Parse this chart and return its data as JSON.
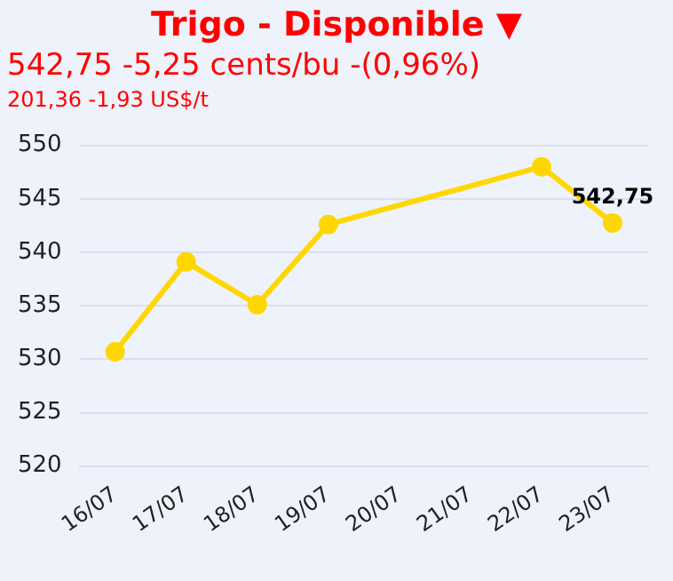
{
  "chart_data": {
    "type": "line",
    "title": "Trigo - Disponible ▼",
    "subtitle": "542,75 -5,25 cents/bu -(0,96%)",
    "annotations": [
      "201,36 -1,93 US$/t"
    ],
    "categories": [
      "16/07",
      "17/07",
      "18/07",
      "19/07",
      "20/07",
      "21/07",
      "22/07",
      "23/07"
    ],
    "series": [
      {
        "color": "#ffd700",
        "values": [
          530.7,
          539.1,
          535.1,
          542.6,
          null,
          null,
          548.0,
          542.75
        ],
        "value_labels": [
          null,
          null,
          null,
          null,
          null,
          null,
          null,
          "542,75"
        ]
      }
    ],
    "ylim": [
      520,
      550
    ],
    "yticks": [
      {
        "value": 520,
        "label": "520"
      },
      {
        "value": 525,
        "label": "525"
      },
      {
        "value": 530,
        "label": "530"
      },
      {
        "value": 535,
        "label": "535"
      },
      {
        "value": 540,
        "label": "540"
      },
      {
        "value": 545,
        "label": "545"
      },
      {
        "value": 550,
        "label": "550"
      }
    ],
    "grid": "y",
    "legend": false,
    "marker": "circle",
    "line_style": "solid"
  }
}
